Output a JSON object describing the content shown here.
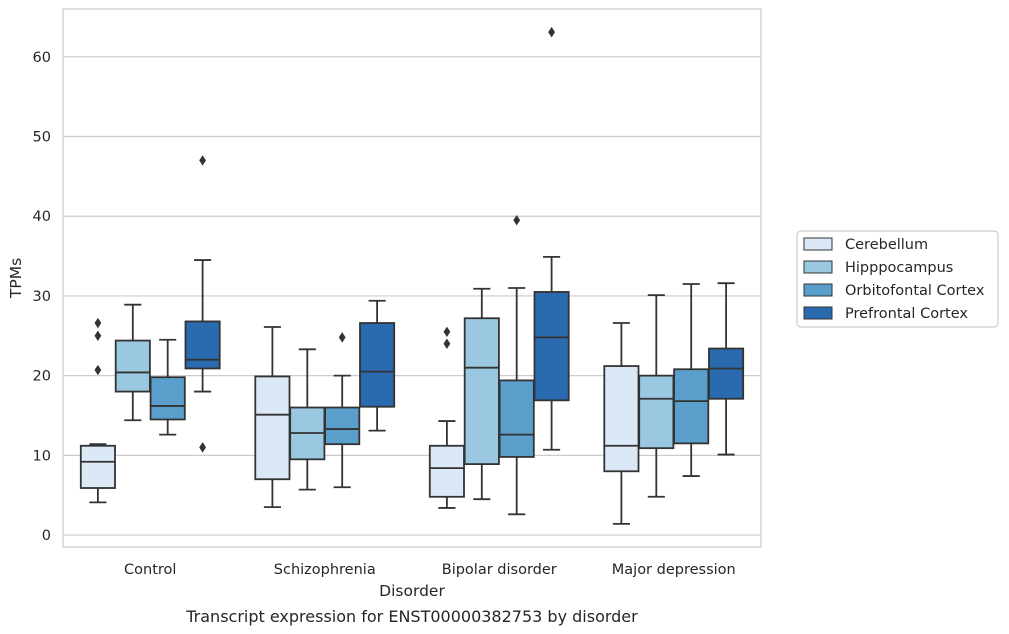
{
  "chart_data": {
    "type": "box",
    "caption": "Transcript expression for ENST00000382753 by disorder",
    "xlabel": "Disorder",
    "ylabel": "TPMs",
    "ylim": [
      -1.5,
      66
    ],
    "yticks": [
      0,
      10,
      20,
      30,
      40,
      50,
      60
    ],
    "grid": true,
    "legend_position": "right",
    "categories": [
      "Control",
      "Schizophrenia",
      "Bipolar disorder",
      "Major depression"
    ],
    "series": [
      {
        "name": "Cerebellum",
        "color": "#dbe9f6",
        "boxes": [
          {
            "min": 4.1,
            "q1": 5.9,
            "median": 9.2,
            "q3": 11.2,
            "max": 11.4,
            "outliers": [
              20.7,
              25.0,
              26.6
            ]
          },
          {
            "min": 3.5,
            "q1": 7.0,
            "median": 15.1,
            "q3": 19.9,
            "max": 26.1,
            "outliers": []
          },
          {
            "min": 3.4,
            "q1": 4.8,
            "median": 8.4,
            "q3": 11.2,
            "max": 14.3,
            "outliers": [
              24.0,
              25.5
            ]
          },
          {
            "min": 1.4,
            "q1": 8.0,
            "median": 11.2,
            "q3": 21.2,
            "max": 26.6,
            "outliers": []
          }
        ]
      },
      {
        "name": "Hipppocampus",
        "color": "#9ac8e0",
        "boxes": [
          {
            "min": 14.4,
            "q1": 18.0,
            "median": 20.4,
            "q3": 24.4,
            "max": 28.9,
            "outliers": []
          },
          {
            "min": 5.7,
            "q1": 9.5,
            "median": 12.8,
            "q3": 16.0,
            "max": 23.3,
            "outliers": []
          },
          {
            "min": 4.5,
            "q1": 8.9,
            "median": 21.0,
            "q3": 27.2,
            "max": 30.9,
            "outliers": []
          },
          {
            "min": 4.8,
            "q1": 10.9,
            "median": 17.1,
            "q3": 20.0,
            "max": 30.1,
            "outliers": []
          }
        ]
      },
      {
        "name": "Orbitofontal Cortex",
        "color": "#5a9ecc",
        "boxes": [
          {
            "min": 12.6,
            "q1": 14.5,
            "median": 16.2,
            "q3": 19.8,
            "max": 24.5,
            "outliers": []
          },
          {
            "min": 6.0,
            "q1": 11.4,
            "median": 13.3,
            "q3": 16.0,
            "max": 20.0,
            "outliers": [
              24.8
            ]
          },
          {
            "min": 2.6,
            "q1": 9.8,
            "median": 12.6,
            "q3": 19.4,
            "max": 31.0,
            "outliers": [
              39.5
            ]
          },
          {
            "min": 7.4,
            "q1": 11.5,
            "median": 16.8,
            "q3": 20.8,
            "max": 31.5,
            "outliers": []
          }
        ]
      },
      {
        "name": "Prefrontal Cortex",
        "color": "#2a6bb0",
        "boxes": [
          {
            "min": 18.0,
            "q1": 20.9,
            "median": 22.0,
            "q3": 26.8,
            "max": 34.5,
            "outliers": [
              11.0,
              47.0
            ]
          },
          {
            "min": 13.1,
            "q1": 16.1,
            "median": 20.5,
            "q3": 26.6,
            "max": 29.4,
            "outliers": []
          },
          {
            "min": 10.7,
            "q1": 16.9,
            "median": 24.8,
            "q3": 30.5,
            "max": 34.9,
            "outliers": [
              63.1
            ]
          },
          {
            "min": 10.1,
            "q1": 17.1,
            "median": 20.9,
            "q3": 23.4,
            "max": 31.6,
            "outliers": []
          }
        ]
      }
    ]
  }
}
